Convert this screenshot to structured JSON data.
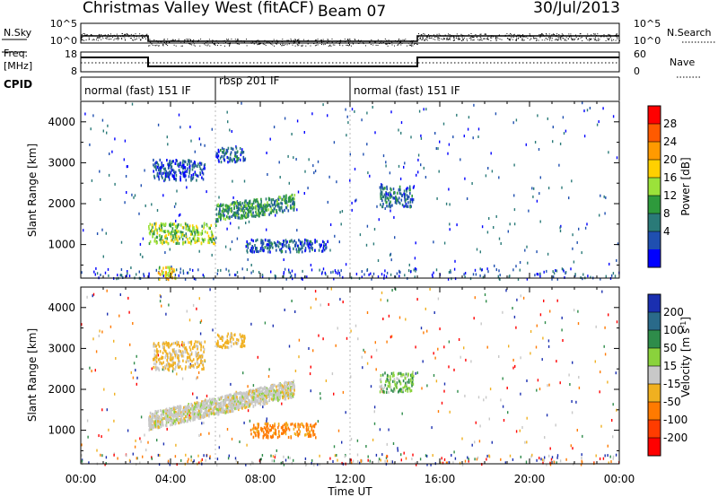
{
  "header": {
    "station": "Christmas Valley West (fitACF)",
    "beam": "Beam 07",
    "date": "30/Jul/2013"
  },
  "nsky": {
    "label": "N.Sky",
    "ticks": [
      "10^5",
      "10^0"
    ],
    "right_label": "N.Search",
    "right_ticks": [
      "10^5",
      "10^0"
    ]
  },
  "freq": {
    "label_line1": "Freq.",
    "label_line2": "[MHz]",
    "ticks": [
      "18",
      "8"
    ],
    "right_label": "Nave",
    "right_ticks": [
      "60",
      "0"
    ]
  },
  "cpid": {
    "label": "CPID",
    "segments": [
      {
        "name": "normal (fast) 151 IF",
        "start_hour": 0,
        "end_hour": 6
      },
      {
        "name": "rbsp 201 IF",
        "start_hour": 6,
        "end_hour": 12
      },
      {
        "name": "normal (fast) 151 IF",
        "start_hour": 12,
        "end_hour": 24
      }
    ]
  },
  "power_panel": {
    "ylabel": "Slant Range [km]",
    "ytick_labels": [
      "1000",
      "2000",
      "3000",
      "4000"
    ],
    "colorbar_label": "Power [dB]",
    "colorbar_ticks": [
      "28",
      "24",
      "20",
      "16",
      "12",
      "8",
      "4"
    ],
    "colorbar_colors": [
      "#ff0000",
      "#ff5a00",
      "#ff9a00",
      "#ffd000",
      "#9be23a",
      "#2e9a3c",
      "#2a7a78",
      "#1f4fb0",
      "#0000ff"
    ]
  },
  "velocity_panel": {
    "ylabel": "Slant Range [km]",
    "ytick_labels": [
      "1000",
      "2000",
      "3000",
      "4000"
    ],
    "colorbar_label": "Velocity [m s",
    "colorbar_label_sup": "-1",
    "colorbar_label_end": "]",
    "colorbar_ticks": [
      "200",
      "100",
      "50",
      "15",
      "-15",
      "-50",
      "-100",
      "-200"
    ],
    "colorbar_colors": [
      "#1a2fb0",
      "#2a6a8a",
      "#2e8c4a",
      "#8ad23c",
      "#c8c8c8",
      "#f0b020",
      "#ff7a00",
      "#ff3c00",
      "#ff0000"
    ]
  },
  "xaxis": {
    "label": "Time UT",
    "tick_labels": [
      "00:00",
      "04:00",
      "08:00",
      "12:00",
      "16:00",
      "20:00",
      "00:00"
    ]
  },
  "chart_data": {
    "type": "heatmap",
    "title": "Christmas Valley West (fitACF)",
    "subtitle": "Beam 07",
    "date": "30/Jul/2013",
    "xlabel": "Time UT",
    "x_range_hours": [
      0,
      24
    ],
    "ylabel": "Slant Range [km]",
    "ylim_km": [
      180,
      4500
    ],
    "panels": [
      {
        "name": "Power",
        "unit": "dB",
        "range": [
          0,
          30
        ],
        "echo_regions": [
          {
            "t_start": 3.0,
            "t_end": 6.0,
            "r_start": 1050,
            "r_end": 1550,
            "value": 14
          },
          {
            "t_start": 6.0,
            "t_end": 9.5,
            "r_start": 1600,
            "r_end": 2250,
            "value": 10
          },
          {
            "t_start": 6.0,
            "t_end": 7.3,
            "r_start": 3050,
            "r_end": 3400,
            "value": 6
          },
          {
            "t_start": 3.2,
            "t_end": 5.5,
            "r_start": 2600,
            "r_end": 3100,
            "value": 5
          },
          {
            "t_start": 7.3,
            "t_end": 11.0,
            "r_start": 850,
            "r_end": 1150,
            "value": 6
          },
          {
            "t_start": 13.3,
            "t_end": 14.8,
            "r_start": 1950,
            "r_end": 2450,
            "value": 7
          },
          {
            "t_start": 3.4,
            "t_end": 4.2,
            "r_start": 180,
            "r_end": 480,
            "value": 18
          }
        ]
      },
      {
        "name": "Velocity",
        "unit": "m s^-1",
        "range": [
          -200,
          200
        ],
        "echo_regions": [
          {
            "t_start": 3.0,
            "t_end": 9.5,
            "r_start": 1050,
            "r_end": 2250,
            "value": 0
          },
          {
            "t_start": 7.5,
            "t_end": 10.5,
            "r_start": 850,
            "r_end": 1200,
            "value": -60
          },
          {
            "t_start": 6.0,
            "t_end": 7.3,
            "r_start": 3050,
            "r_end": 3400,
            "value": -30
          },
          {
            "t_start": 3.2,
            "t_end": 5.5,
            "r_start": 2500,
            "r_end": 3200,
            "value": -20
          },
          {
            "t_start": 13.3,
            "t_end": 14.8,
            "r_start": 1950,
            "r_end": 2450,
            "value": 25
          }
        ]
      }
    ]
  }
}
